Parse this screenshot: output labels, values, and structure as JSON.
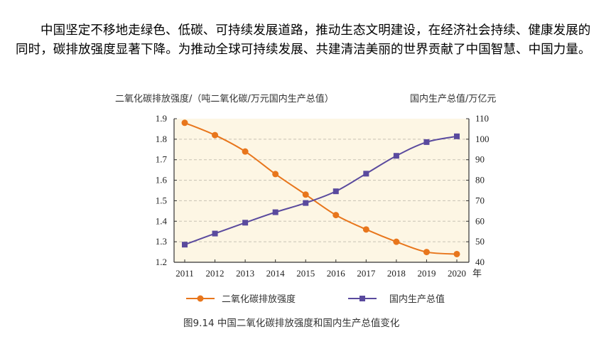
{
  "paragraph": "中国坚定不移地走绿色、低碳、可持续发展道路，推动生态文明建设，在经济社会持续、健康发展的同时，碳排放强度显著下降。为推动全球可持续发展、共建清洁美丽的世界贡献了中国智慧、中国力量。",
  "chart_data": {
    "type": "line",
    "caption": "图9.14 中国二氧化碳排放强度和国内生产总值变化",
    "ylabel_left": "二氧化碳排放强度/（吨二氧化碳/万元国内生产总值）",
    "ylabel_right": "国内生产总值/万亿元",
    "xunit": "年",
    "categories": [
      "2011",
      "2012",
      "2013",
      "2014",
      "2015",
      "2016",
      "2017",
      "2018",
      "2019",
      "2020"
    ],
    "ylim_left": [
      1.2,
      1.9
    ],
    "yticks_left": [
      "1.2",
      "1.3",
      "1.4",
      "1.5",
      "1.6",
      "1.7",
      "1.8",
      "1.9"
    ],
    "ylim_right": [
      40,
      110
    ],
    "yticks_right": [
      "40",
      "50",
      "60",
      "70",
      "80",
      "90",
      "100",
      "110"
    ],
    "grid": "horizontal dashed",
    "legend_position": "bottom",
    "series": [
      {
        "name": "二氧化碳排放强度",
        "axis": "left",
        "color": "#e8761c",
        "marker": "circle",
        "values": [
          1.88,
          1.82,
          1.74,
          1.63,
          1.53,
          1.43,
          1.36,
          1.3,
          1.25,
          1.24
        ]
      },
      {
        "name": "国内生产总值",
        "axis": "right",
        "color": "#5a4a9e",
        "marker": "square",
        "values": [
          48.6,
          54.0,
          59.3,
          64.4,
          68.9,
          74.6,
          83.2,
          91.9,
          98.6,
          101.4
        ]
      }
    ],
    "plot_background": "#fdf6e4"
  }
}
